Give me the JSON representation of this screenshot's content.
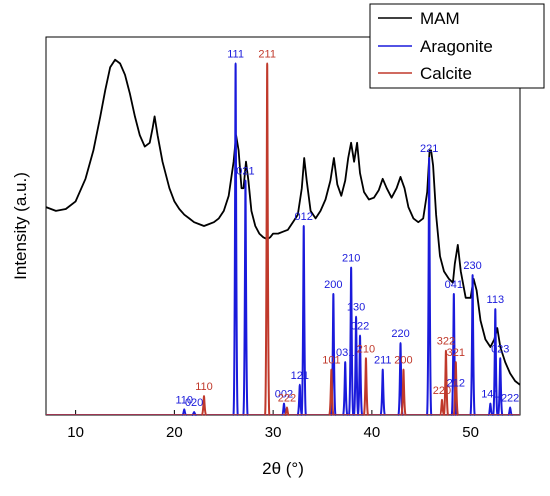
{
  "chart_data": {
    "type": "line",
    "xlabel": "2θ (°)",
    "ylabel": "Intensity (a.u.)",
    "xlim": [
      7,
      55
    ],
    "ylim": [
      0,
      1
    ],
    "x_ticks": [
      10,
      20,
      30,
      40,
      50
    ],
    "legend_position": "top-right",
    "legend": [
      {
        "name": "MAM",
        "color": "#000000"
      },
      {
        "name": "Aragonite",
        "color": "#1a1adb"
      },
      {
        "name": "Calcite",
        "color": "#c0392b"
      }
    ],
    "series": [
      {
        "name": "MAM",
        "color": "#000000",
        "x": [
          7.0,
          8.0,
          9.0,
          10.0,
          11.0,
          11.8,
          12.5,
          13.0,
          13.5,
          14.0,
          14.5,
          15.0,
          15.5,
          16.0,
          16.5,
          17.0,
          17.5,
          17.8,
          18.0,
          18.3,
          18.8,
          19.5,
          20.0,
          20.5,
          21.0,
          21.5,
          22.0,
          22.5,
          23.0,
          23.5,
          24.0,
          24.5,
          25.0,
          25.5,
          26.0,
          26.25,
          26.5,
          26.8,
          27.0,
          27.25,
          27.5,
          27.8,
          28.2,
          28.6,
          29.0,
          29.4,
          29.7,
          30.0,
          30.5,
          31.0,
          31.5,
          32.0,
          32.5,
          32.9,
          33.15,
          33.4,
          33.8,
          34.3,
          34.8,
          35.3,
          35.8,
          36.15,
          36.5,
          36.9,
          37.3,
          37.6,
          37.9,
          38.2,
          38.5,
          38.8,
          39.2,
          39.7,
          40.2,
          40.7,
          41.1,
          41.5,
          42.0,
          42.5,
          42.9,
          43.3,
          43.7,
          44.2,
          44.7,
          45.2,
          45.6,
          45.85,
          46.0,
          46.2,
          46.5,
          46.9,
          47.3,
          47.8,
          48.2,
          48.4,
          48.7,
          49.0,
          49.5,
          50.0,
          50.3,
          50.6,
          51.0,
          51.5,
          52.0,
          52.4,
          52.7,
          53.0,
          53.5,
          54.0,
          54.5,
          55.0
        ],
        "y": [
          0.55,
          0.54,
          0.545,
          0.565,
          0.625,
          0.7,
          0.79,
          0.86,
          0.92,
          0.94,
          0.93,
          0.9,
          0.85,
          0.79,
          0.74,
          0.71,
          0.72,
          0.76,
          0.79,
          0.74,
          0.67,
          0.6,
          0.565,
          0.545,
          0.53,
          0.52,
          0.51,
          0.505,
          0.5,
          0.505,
          0.51,
          0.52,
          0.54,
          0.58,
          0.67,
          0.74,
          0.7,
          0.6,
          0.6,
          0.67,
          0.62,
          0.54,
          0.5,
          0.48,
          0.47,
          0.465,
          0.47,
          0.48,
          0.48,
          0.485,
          0.49,
          0.51,
          0.53,
          0.6,
          0.68,
          0.62,
          0.54,
          0.52,
          0.54,
          0.57,
          0.62,
          0.68,
          0.61,
          0.58,
          0.62,
          0.68,
          0.72,
          0.67,
          0.72,
          0.64,
          0.59,
          0.57,
          0.575,
          0.595,
          0.625,
          0.6,
          0.575,
          0.6,
          0.63,
          0.6,
          0.55,
          0.52,
          0.51,
          0.52,
          0.59,
          0.7,
          0.7,
          0.66,
          0.53,
          0.42,
          0.38,
          0.36,
          0.35,
          0.4,
          0.45,
          0.38,
          0.31,
          0.31,
          0.36,
          0.33,
          0.25,
          0.2,
          0.18,
          0.2,
          0.23,
          0.18,
          0.14,
          0.11,
          0.09,
          0.08
        ]
      },
      {
        "name": "Aragonite",
        "color": "#1a1adb",
        "peaks": [
          {
            "x": 21.0,
            "y": 0.015,
            "label": "110"
          },
          {
            "x": 22.0,
            "y": 0.008,
            "label": "020"
          },
          {
            "x": 26.2,
            "y": 0.93,
            "label": "111"
          },
          {
            "x": 27.2,
            "y": 0.62,
            "label": "021"
          },
          {
            "x": 31.1,
            "y": 0.03,
            "label": "002"
          },
          {
            "x": 32.7,
            "y": 0.08,
            "label": "121"
          },
          {
            "x": 33.1,
            "y": 0.5,
            "label": "012"
          },
          {
            "x": 36.1,
            "y": 0.32,
            "label": "200"
          },
          {
            "x": 37.3,
            "y": 0.14,
            "label": "031"
          },
          {
            "x": 37.9,
            "y": 0.39,
            "label": "210"
          },
          {
            "x": 38.4,
            "y": 0.26,
            "label": "130"
          },
          {
            "x": 38.8,
            "y": 0.21,
            "label": "022"
          },
          {
            "x": 41.1,
            "y": 0.12,
            "label": "211"
          },
          {
            "x": 42.9,
            "y": 0.19,
            "label": "220"
          },
          {
            "x": 45.8,
            "y": 0.68,
            "label": "221"
          },
          {
            "x": 48.3,
            "y": 0.32,
            "label": "041"
          },
          {
            "x": 48.5,
            "y": 0.06,
            "label": "212"
          },
          {
            "x": 50.2,
            "y": 0.37,
            "label": "230"
          },
          {
            "x": 52.0,
            "y": 0.03,
            "label": "141"
          },
          {
            "x": 52.5,
            "y": 0.28,
            "label": "113"
          },
          {
            "x": 53.0,
            "y": 0.15,
            "label": "023"
          },
          {
            "x": 54.0,
            "y": 0.02,
            "label": "222"
          }
        ]
      },
      {
        "name": "Calcite",
        "color": "#c0392b",
        "peaks": [
          {
            "x": 23.0,
            "y": 0.05,
            "label": "110"
          },
          {
            "x": 29.4,
            "y": 0.93,
            "label": "211"
          },
          {
            "x": 31.4,
            "y": 0.02,
            "label": "222"
          },
          {
            "x": 35.9,
            "y": 0.12,
            "label": "101"
          },
          {
            "x": 39.4,
            "y": 0.15,
            "label": "210"
          },
          {
            "x": 43.2,
            "y": 0.12,
            "label": "200"
          },
          {
            "x": 47.1,
            "y": 0.04,
            "label": "220"
          },
          {
            "x": 47.5,
            "y": 0.17,
            "label": "322"
          },
          {
            "x": 48.5,
            "y": 0.14,
            "label": "321"
          }
        ]
      }
    ]
  }
}
